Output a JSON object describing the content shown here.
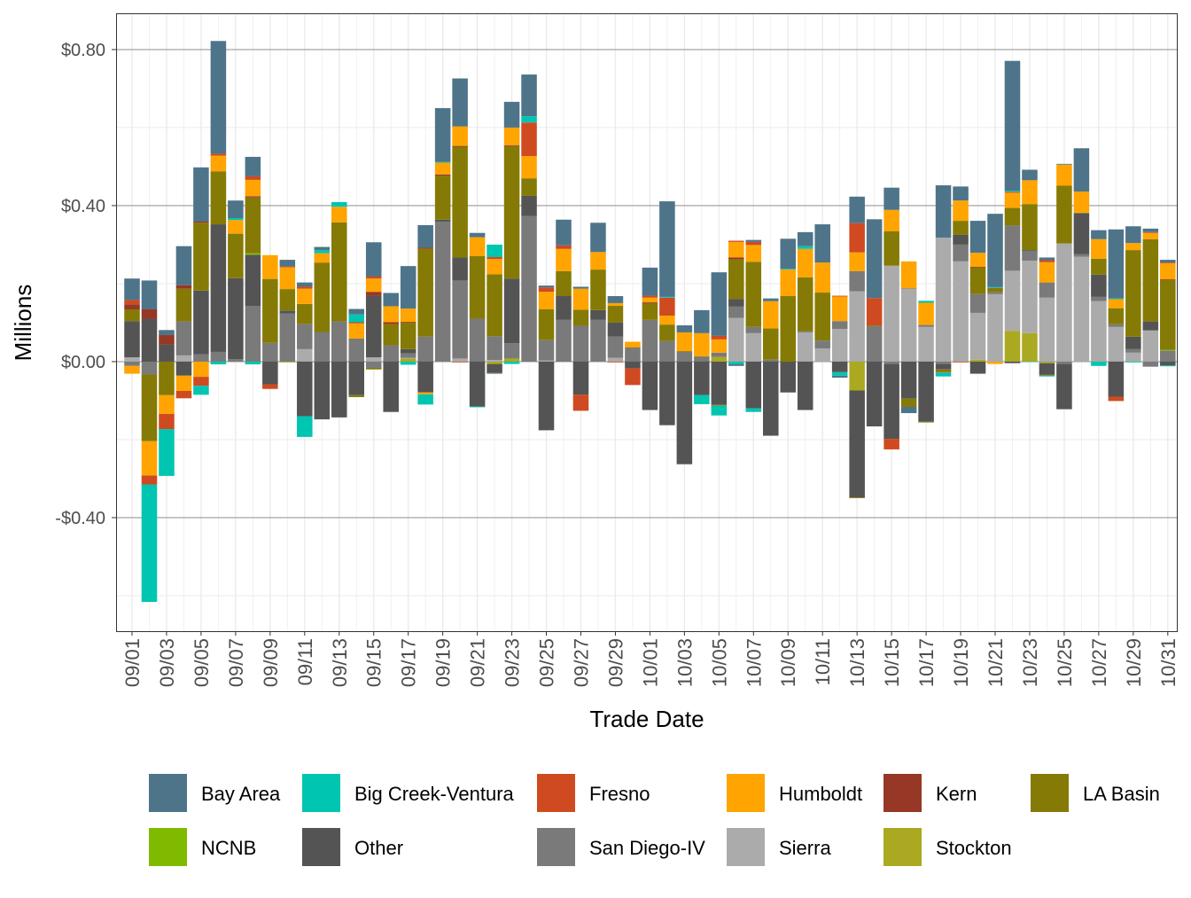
{
  "chart_data": {
    "type": "bar",
    "stacked": true,
    "xlabel": "Trade Date",
    "ylabel": "Millions",
    "ylim": [
      -0.691,
      0.893
    ],
    "y_ticks": [
      -0.4,
      0.0,
      0.4,
      0.8
    ],
    "y_tick_labels": [
      "-$0.40",
      "$0.00",
      "$0.40",
      "$0.80"
    ],
    "grid": true,
    "legend_position": "bottom",
    "categories": [
      "09/01",
      "09/02",
      "09/03",
      "09/04",
      "09/05",
      "09/06",
      "09/07",
      "09/08",
      "09/09",
      "09/10",
      "09/11",
      "09/12",
      "09/13",
      "09/14",
      "09/15",
      "09/16",
      "09/17",
      "09/18",
      "09/19",
      "09/20",
      "09/21",
      "09/22",
      "09/23",
      "09/24",
      "09/25",
      "09/26",
      "09/27",
      "09/28",
      "09/29",
      "09/30",
      "10/01",
      "10/02",
      "10/03",
      "10/04",
      "10/05",
      "10/06",
      "10/07",
      "10/08",
      "10/09",
      "10/10",
      "10/11",
      "10/12",
      "10/13",
      "10/14",
      "10/15",
      "10/16",
      "10/17",
      "10/18",
      "10/19",
      "10/20",
      "10/21",
      "10/22",
      "10/23",
      "10/24",
      "10/25",
      "10/26",
      "10/27",
      "10/28",
      "10/29",
      "10/30",
      "10/31"
    ],
    "x_tick_labels": [
      "09/01",
      "09/03",
      "09/05",
      "09/07",
      "09/09",
      "09/11",
      "09/13",
      "09/15",
      "09/17",
      "09/19",
      "09/21",
      "09/23",
      "09/25",
      "09/27",
      "09/29",
      "10/01",
      "10/03",
      "10/05",
      "10/07",
      "10/09",
      "10/11",
      "10/13",
      "10/15",
      "10/17",
      "10/19",
      "10/21",
      "10/23",
      "10/25",
      "10/27",
      "10/29",
      "10/31"
    ],
    "series": [
      {
        "name": "Bay Area",
        "color": "#4e7489",
        "values": [
          0.055,
          0.074,
          0.013,
          0.1,
          0.139,
          0.289,
          0.045,
          0.05,
          0,
          0.017,
          0.011,
          0.008,
          0,
          0.014,
          0.088,
          0.034,
          0.109,
          0.058,
          0.138,
          0.123,
          0.011,
          -0.002,
          0.066,
          0.107,
          0.005,
          0.066,
          0.005,
          0.075,
          0.018,
          0,
          0.072,
          0.245,
          0.018,
          0.059,
          0.163,
          -0.005,
          0.005,
          0.007,
          0.077,
          0.036,
          0.098,
          -0.005,
          0.068,
          0.202,
          0.057,
          -0.016,
          0,
          0.134,
          0.036,
          0.082,
          0.188,
          0.333,
          0.027,
          0.007,
          0.002,
          0.111,
          0.023,
          0.177,
          0.043,
          0.009,
          0.007
        ]
      },
      {
        "name": "Big Creek-Ventura",
        "color": "#00c5b0",
        "values": [
          0,
          -0.301,
          -0.12,
          0,
          -0.023,
          -0.007,
          0.005,
          -0.007,
          0,
          0,
          -0.053,
          0.008,
          0.012,
          0.02,
          0,
          0,
          -0.008,
          -0.026,
          0.002,
          0,
          -0.002,
          0.032,
          -0.006,
          0.016,
          0,
          0,
          0,
          0,
          0,
          0,
          0,
          0.002,
          0,
          -0.023,
          -0.025,
          -0.006,
          -0.009,
          0,
          0.002,
          0.007,
          0,
          -0.009,
          0,
          0,
          0,
          0,
          0.005,
          -0.01,
          0,
          0,
          0.002,
          0.003,
          -0.001,
          -0.002,
          0,
          0,
          -0.011,
          0.002,
          -0.002,
          0,
          -0.002
        ]
      },
      {
        "name": "Fresno",
        "color": "#d04a21",
        "values": [
          0.011,
          -0.023,
          -0.039,
          -0.019,
          -0.023,
          0.005,
          0,
          0.009,
          -0.012,
          0.002,
          0.005,
          0,
          0,
          0.003,
          0.005,
          0,
          0,
          0,
          0,
          -0.002,
          0,
          0.005,
          0,
          0.086,
          0.011,
          0.009,
          -0.041,
          0,
          -0.002,
          -0.043,
          0.005,
          0.046,
          0,
          0,
          0.009,
          0.003,
          0.008,
          0,
          0,
          0,
          0,
          0.002,
          0.075,
          0.07,
          -0.027,
          0,
          0,
          -0.002,
          -0.002,
          0,
          0,
          0.002,
          0,
          0.005,
          0,
          0,
          0,
          -0.011,
          0,
          0.002,
          0.002
        ]
      },
      {
        "name": "Humboldt",
        "color": "#ffa400",
        "values": [
          -0.02,
          -0.088,
          -0.048,
          -0.039,
          -0.039,
          0.04,
          0.035,
          0.042,
          0.061,
          0.056,
          0.039,
          0.024,
          0.04,
          0.039,
          0.034,
          0.041,
          0.034,
          -0.005,
          0.03,
          0.05,
          0.048,
          0.039,
          0.045,
          0.057,
          0.045,
          0.057,
          0.054,
          0.045,
          0.007,
          0.014,
          0.012,
          0.023,
          0.048,
          0.059,
          0.034,
          0.04,
          0.043,
          0.07,
          0.068,
          0.073,
          0.077,
          0.063,
          0.048,
          0,
          0.055,
          0.069,
          0.057,
          0,
          0.052,
          0.036,
          -0.006,
          0.039,
          0.061,
          0.052,
          0.054,
          0.054,
          0.05,
          0.023,
          0.018,
          0.016,
          0.041
        ]
      },
      {
        "name": "Kern",
        "color": "#973725",
        "values": [
          0.013,
          0.024,
          0.024,
          0.009,
          0.003,
          0,
          0,
          0.003,
          0,
          0,
          0,
          0,
          0,
          0,
          0.01,
          0.005,
          0.002,
          0.003,
          0.003,
          0.002,
          0,
          0,
          0.002,
          0,
          0,
          0,
          0,
          0,
          0,
          0,
          0.002,
          0,
          0,
          0,
          0,
          0.005,
          0,
          0,
          0,
          0,
          0,
          0,
          0,
          0,
          0,
          0,
          0,
          0,
          0,
          0.002,
          0,
          0,
          0,
          0,
          0,
          0,
          0,
          0,
          0,
          0,
          0.002
        ]
      },
      {
        "name": "LA Basin",
        "color": "#857a05",
        "values": [
          0.03,
          -0.171,
          -0.086,
          0.084,
          0.174,
          0.136,
          0.114,
          0.143,
          0.164,
          0.055,
          0.052,
          0.178,
          0.254,
          -0.005,
          -0.004,
          0.054,
          0.068,
          0.225,
          0.113,
          0.284,
          0.161,
          0.159,
          0.34,
          0.045,
          0.079,
          0.064,
          0.041,
          0.104,
          0.043,
          0.002,
          0.043,
          0.042,
          0.002,
          0.002,
          -0.002,
          0.102,
          0.167,
          0.08,
          0.168,
          0.138,
          0.123,
          0,
          -0.002,
          0.002,
          0.088,
          -0.021,
          -0.002,
          -0.006,
          0.036,
          0.068,
          0.011,
          0.045,
          0.118,
          -0.002,
          0.148,
          0.002,
          0.041,
          0.041,
          0.222,
          0.211,
          0.179
        ]
      },
      {
        "name": "NCNB",
        "color": "#7fba00",
        "values": [
          0,
          0,
          0,
          0,
          0,
          0,
          0,
          0.004,
          0,
          0,
          0,
          0,
          0,
          0,
          0,
          0,
          0,
          0,
          0,
          0,
          0,
          0,
          0,
          0,
          0,
          0,
          0,
          0,
          0,
          0,
          0,
          0,
          0,
          0,
          0,
          0,
          0,
          0,
          0,
          0,
          0,
          0,
          0,
          0,
          0,
          0,
          0,
          0,
          0,
          0,
          0,
          0,
          0,
          0,
          0,
          0,
          0,
          0,
          0,
          0,
          0.002
        ]
      },
      {
        "name": "Other",
        "color": "#545454",
        "values": [
          0.093,
          0.11,
          0.044,
          -0.036,
          0.163,
          0.327,
          0.208,
          0.131,
          -0.058,
          0.008,
          -0.14,
          -0.148,
          -0.143,
          -0.086,
          0.158,
          -0.129,
          0.011,
          -0.079,
          0.005,
          0.059,
          -0.115,
          -0.023,
          0.166,
          0.052,
          -0.176,
          0.061,
          -0.085,
          0.025,
          0.036,
          -0.017,
          -0.124,
          -0.163,
          -0.263,
          -0.086,
          -0.111,
          0.019,
          -0.12,
          -0.19,
          -0.079,
          -0.124,
          0,
          -0.027,
          -0.274,
          -0.166,
          -0.192,
          -0.095,
          -0.154,
          -0.014,
          0.025,
          -0.031,
          0,
          -0.004,
          0.002,
          -0.03,
          -0.116,
          0.104,
          0.057,
          -0.09,
          0.032,
          0.023,
          -0.01
        ]
      },
      {
        "name": "San Diego-IV",
        "color": "#7a7a7a",
        "values": [
          -0.011,
          -0.033,
          0,
          0.087,
          0.019,
          0.025,
          0.006,
          0.143,
          0.048,
          0.123,
          0.064,
          0.076,
          0.103,
          0.059,
          -0.016,
          0.042,
          0.011,
          0.064,
          0.359,
          0.2,
          0.11,
          0.061,
          0.039,
          0.373,
          0.052,
          0.107,
          0.092,
          0.107,
          0.054,
          0.035,
          0.107,
          0.053,
          0.025,
          0.012,
          0.011,
          0.029,
          0.016,
          0.005,
          0,
          0.003,
          0.02,
          0.02,
          0.052,
          0.091,
          -0.006,
          0.002,
          0.005,
          -0.006,
          0.043,
          0.048,
          0.005,
          0.116,
          0.025,
          0.039,
          -0.006,
          0.007,
          0.011,
          0.007,
          0.009,
          -0.013,
          0.028
        ]
      },
      {
        "name": "Sierra",
        "color": "#ababab",
        "values": [
          0.011,
          0,
          0,
          0.016,
          0,
          0,
          0,
          0,
          0,
          0,
          0.032,
          0,
          0,
          0,
          0.011,
          0,
          0.002,
          0,
          0,
          0.008,
          0,
          0.004,
          0,
          0,
          0.003,
          0,
          0,
          0,
          0.01,
          0,
          0,
          0,
          0,
          0,
          0,
          0.112,
          0.073,
          0,
          0,
          0.075,
          0.034,
          0.084,
          0.18,
          0,
          0.246,
          0.186,
          0.089,
          0.318,
          0.257,
          0.12,
          0.173,
          0.154,
          0.186,
          0.164,
          0.303,
          0.269,
          0.155,
          0.089,
          0.023,
          0.08,
          0
        ]
      },
      {
        "name": "Stockton",
        "color": "#aaa921",
        "values": [
          0,
          0,
          0,
          0,
          0,
          0,
          0,
          0,
          0,
          -0.002,
          0,
          0,
          0,
          0,
          0,
          0,
          0.008,
          0,
          0,
          0,
          0,
          -0.006,
          0.008,
          0,
          0,
          0,
          0,
          0,
          0,
          0,
          0,
          0,
          0,
          0,
          0.012,
          0,
          0,
          0,
          0,
          0,
          0,
          0,
          -0.074,
          0,
          0,
          0,
          0,
          0,
          0,
          0.005,
          0,
          0.079,
          0.073,
          -0.004,
          0,
          0,
          0,
          0,
          0,
          0,
          0
        ]
      }
    ]
  }
}
